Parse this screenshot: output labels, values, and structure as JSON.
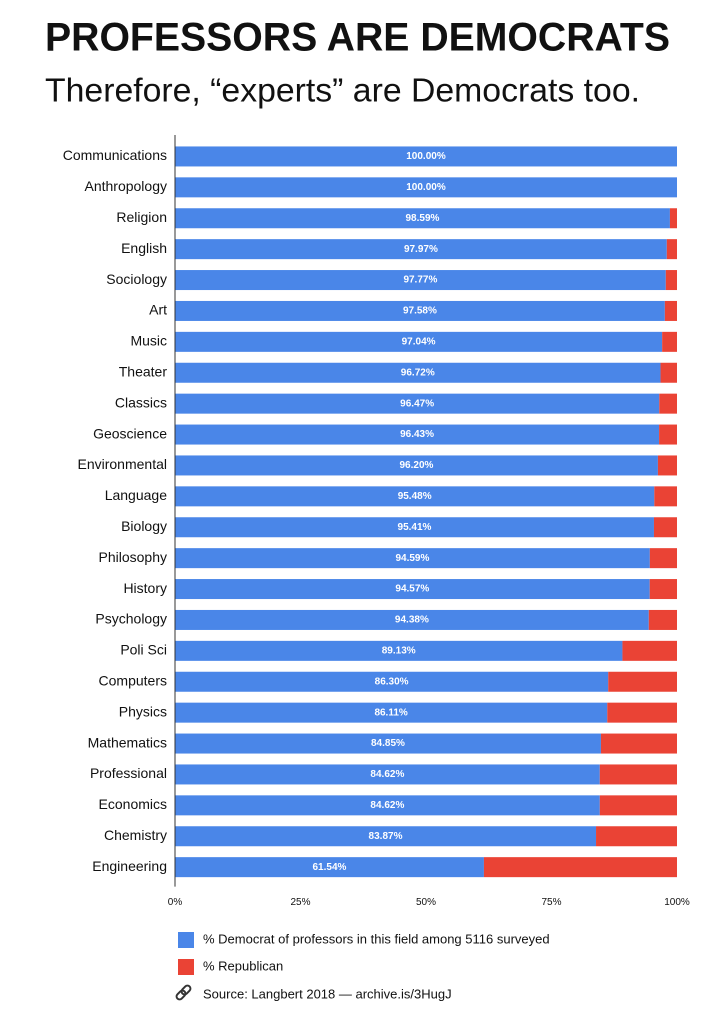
{
  "chart_data": {
    "type": "bar",
    "orientation": "horizontal",
    "stacked": true,
    "title": "PROFESSORS ARE DEMOCRATS",
    "subtitle": "Therefore, “experts” are Democrats too.",
    "categories": [
      "Communications",
      "Anthropology",
      "Religion",
      "English",
      "Sociology",
      "Art",
      "Music",
      "Theater",
      "Classics",
      "Geoscience",
      "Environmental",
      "Language",
      "Biology",
      "Philosophy",
      "History",
      "Psychology",
      "Poli Sci",
      "Computers",
      "Physics",
      "Mathematics",
      "Professional",
      "Economics",
      "Chemistry",
      "Engineering"
    ],
    "series": [
      {
        "name": "% Democrat of professors in this field among 5116 surveyed",
        "color": "#4a86e8",
        "values": [
          100,
          100,
          98.59,
          97.97,
          97.77,
          97.58,
          97.04,
          96.72,
          96.47,
          96.43,
          96.2,
          95.48,
          95.41,
          94.59,
          94.57,
          94.38,
          89.13,
          86.3,
          86.11,
          84.85,
          84.62,
          84.62,
          83.87,
          61.54
        ],
        "value_labels": [
          "100.00%",
          "100.00%",
          "98.59%",
          "97.97%",
          "97.77%",
          "97.58%",
          "97.04%",
          "96.72%",
          "96.47%",
          "96.43%",
          "96.20%",
          "95.48%",
          "95.41%",
          "94.59%",
          "94.57%",
          "94.38%",
          "89.13%",
          "86.30%",
          "86.11%",
          "84.85%",
          "84.62%",
          "84.62%",
          "83.87%",
          "61.54%"
        ]
      },
      {
        "name": "% Republican",
        "color": "#ea4335",
        "values": [
          0,
          0,
          1.41,
          2.03,
          2.23,
          2.42,
          2.96,
          3.28,
          3.53,
          3.57,
          3.8,
          4.52,
          4.59,
          5.41,
          5.43,
          5.62,
          10.87,
          13.7,
          13.89,
          15.15,
          15.38,
          15.38,
          16.13,
          38.46
        ]
      }
    ],
    "xlim": [
      0,
      100
    ],
    "xticks": [
      {
        "value": 0,
        "label": "0%"
      },
      {
        "value": 25,
        "label": "25%"
      },
      {
        "value": 50,
        "label": "50%"
      },
      {
        "value": 75,
        "label": "75%"
      },
      {
        "value": 100,
        "label": "100%"
      }
    ],
    "source": "Source: Langbert 2018 — archive.is/3HugJ"
  }
}
